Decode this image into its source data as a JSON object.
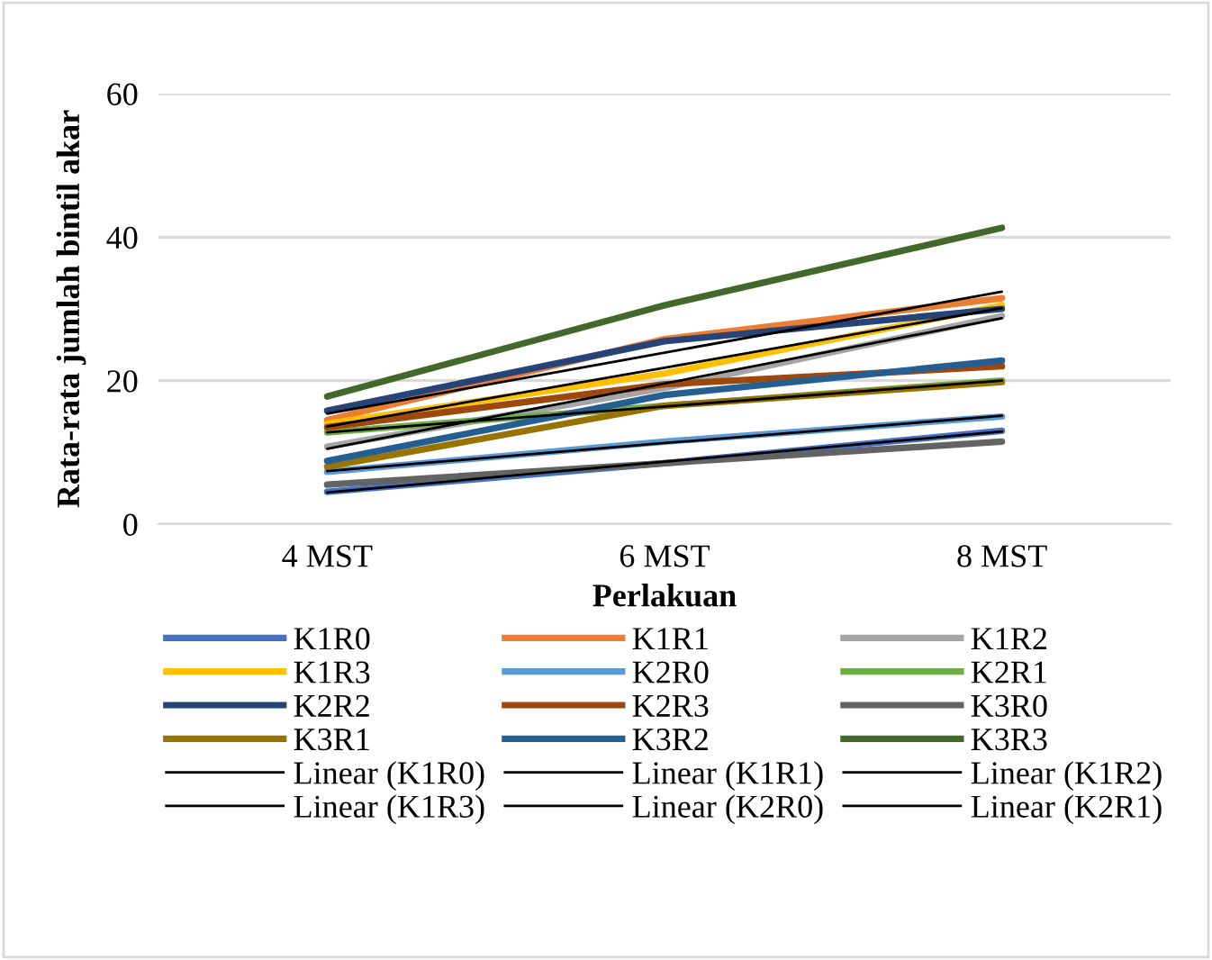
{
  "chart_data": {
    "type": "line",
    "xlabel": "Perlakuan",
    "ylabel": "Rata-rata jumlah bintil akar",
    "categories": [
      "4 MST",
      "6 MST",
      "8 MST"
    ],
    "ylim": [
      0,
      60
    ],
    "yticks": [
      0,
      20,
      40,
      60
    ],
    "grid": "y",
    "legend": "bottom",
    "marker": "none",
    "line_style": "solid",
    "series": [
      {
        "name": "K1R0",
        "color": "#4472c4",
        "values": [
          4.5,
          8.5,
          13
        ]
      },
      {
        "name": "K1R1",
        "color": "#ed7d31",
        "values": [
          14.5,
          25.8,
          31.5
        ]
      },
      {
        "name": "K1R2",
        "color": "#a5a5a5",
        "values": [
          10.8,
          19,
          29
        ]
      },
      {
        "name": "K1R3",
        "color": "#ffc000",
        "values": [
          14,
          21,
          30.5
        ]
      },
      {
        "name": "K2R0",
        "color": "#5b9bd5",
        "values": [
          7.3,
          11.5,
          15
        ]
      },
      {
        "name": "K2R1",
        "color": "#70ad47",
        "values": [
          12.8,
          16.5,
          20
        ]
      },
      {
        "name": "K2R2",
        "color": "#264478",
        "values": [
          15.8,
          25.5,
          30
        ]
      },
      {
        "name": "K2R3",
        "color": "#9e480e",
        "values": [
          13.5,
          19.5,
          22
        ]
      },
      {
        "name": "K3R0",
        "color": "#636363",
        "values": [
          5.5,
          8.5,
          11.5
        ]
      },
      {
        "name": "K3R1",
        "color": "#997300",
        "values": [
          8,
          16.5,
          19.8
        ]
      },
      {
        "name": "K3R2",
        "color": "#255e91",
        "values": [
          8.8,
          18,
          22.8
        ]
      },
      {
        "name": "K3R3",
        "color": "#43682b",
        "values": [
          17.8,
          30.5,
          41.3
        ]
      },
      {
        "name": "Linear (K1R0)",
        "color": "#000000",
        "values": [
          4.4,
          8.7,
          12.9
        ]
      },
      {
        "name": "Linear (K1R1)",
        "color": "#000000",
        "values": [
          15.4,
          23.9,
          32.4
        ]
      },
      {
        "name": "Linear (K1R2)",
        "color": "#000000",
        "values": [
          10.5,
          19.6,
          28.7
        ]
      },
      {
        "name": "Linear (K1R3)",
        "color": "#000000",
        "values": [
          13.6,
          21.8,
          30.1
        ]
      },
      {
        "name": "Linear (K2R0)",
        "color": "#000000",
        "values": [
          7.4,
          11.3,
          15.1
        ]
      },
      {
        "name": "Linear (K2R1)",
        "color": "#000000",
        "values": [
          12.8,
          16.4,
          20.0
        ]
      }
    ]
  }
}
